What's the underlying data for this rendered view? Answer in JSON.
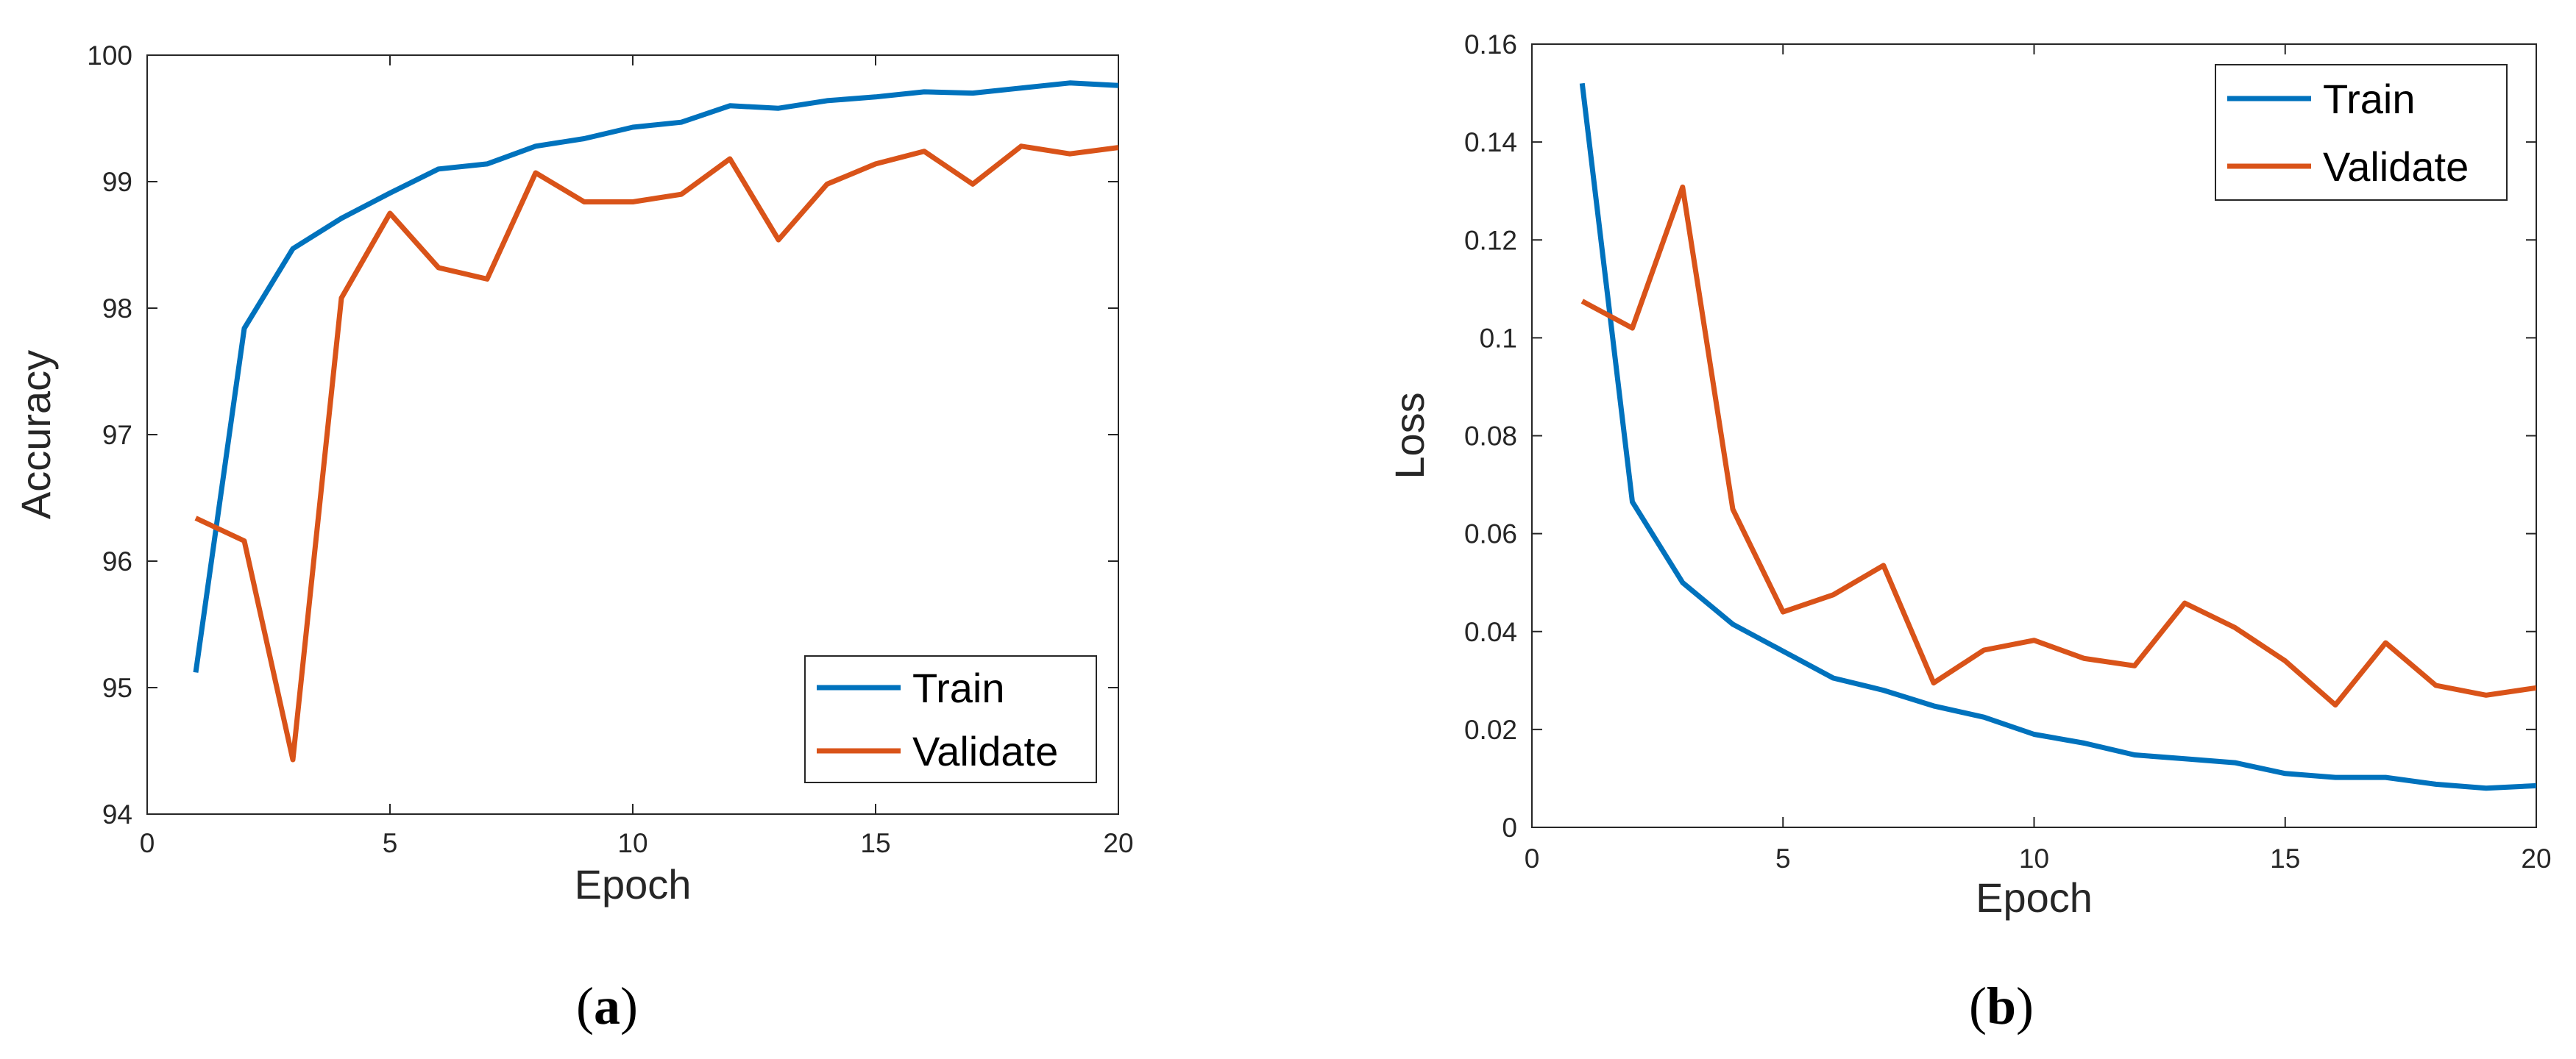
{
  "chart_data": [
    {
      "type": "line",
      "panel": "a",
      "caption": {
        "open": "(",
        "letter": "a",
        "close": ")"
      },
      "title": "",
      "xlabel": "Epoch",
      "ylabel": "Accuracy",
      "xlim": [
        0,
        20
      ],
      "ylim": [
        94,
        100
      ],
      "xticks": [
        0,
        5,
        10,
        15,
        20
      ],
      "yticks": [
        94,
        95,
        96,
        97,
        98,
        99,
        100
      ],
      "ytick_decimals": 0,
      "grid": false,
      "legend_position": "bottom-right",
      "series": [
        {
          "name": "Train",
          "color": "#0072BD",
          "x": [
            1,
            2,
            3,
            4,
            5,
            6,
            7,
            8,
            9,
            10,
            11,
            12,
            13,
            14,
            15,
            16,
            17,
            18,
            19,
            20
          ],
          "y": [
            95.12,
            97.84,
            98.47,
            98.71,
            98.91,
            99.1,
            99.14,
            99.28,
            99.34,
            99.43,
            99.47,
            99.6,
            99.58,
            99.64,
            99.67,
            99.71,
            99.7,
            99.74,
            99.78,
            99.76
          ]
        },
        {
          "name": "Validate",
          "color": "#D95319",
          "x": [
            1,
            2,
            3,
            4,
            5,
            6,
            7,
            8,
            9,
            10,
            11,
            12,
            13,
            14,
            15,
            16,
            17,
            18,
            19,
            20
          ],
          "y": [
            96.34,
            96.16,
            94.43,
            98.08,
            98.75,
            98.32,
            98.23,
            99.07,
            98.84,
            98.84,
            98.9,
            99.18,
            98.54,
            98.98,
            99.14,
            99.24,
            98.98,
            99.28,
            99.22,
            99.27
          ]
        }
      ]
    },
    {
      "type": "line",
      "panel": "b",
      "caption": {
        "open": "(",
        "letter": "b",
        "close": ")"
      },
      "title": "",
      "xlabel": "Epoch",
      "ylabel": "Loss",
      "xlim": [
        0,
        20
      ],
      "ylim": [
        0,
        0.16
      ],
      "xticks": [
        0,
        5,
        10,
        15,
        20
      ],
      "yticks": [
        0,
        0.02,
        0.04,
        0.06,
        0.08,
        0.1,
        0.12,
        0.14,
        0.16
      ],
      "ytick_labels": [
        "0",
        "0.02",
        "0.04",
        "0.06",
        "0.08",
        "0.1",
        "0.12",
        "0.14",
        "0.16"
      ],
      "grid": false,
      "legend_position": "top-right",
      "series": [
        {
          "name": "Train",
          "color": "#0072BD",
          "x": [
            1,
            2,
            3,
            4,
            5,
            6,
            7,
            8,
            9,
            10,
            11,
            12,
            13,
            14,
            15,
            16,
            17,
            18,
            19,
            20
          ],
          "y": [
            0.152,
            0.0665,
            0.05,
            0.0415,
            0.036,
            0.0305,
            0.028,
            0.0248,
            0.0225,
            0.019,
            0.0172,
            0.0148,
            0.014,
            0.0132,
            0.011,
            0.0102,
            0.0102,
            0.0088,
            0.008,
            0.0085
          ]
        },
        {
          "name": "Validate",
          "color": "#D95319",
          "x": [
            1,
            2,
            3,
            4,
            5,
            6,
            7,
            8,
            9,
            10,
            11,
            12,
            13,
            14,
            15,
            16,
            17,
            18,
            19,
            20
          ],
          "y": [
            0.1075,
            0.102,
            0.1308,
            0.065,
            0.044,
            0.0475,
            0.0535,
            0.0295,
            0.0362,
            0.0382,
            0.0345,
            0.033,
            0.0458,
            0.0408,
            0.034,
            0.025,
            0.0377,
            0.029,
            0.027,
            0.0285
          ]
        }
      ]
    }
  ]
}
